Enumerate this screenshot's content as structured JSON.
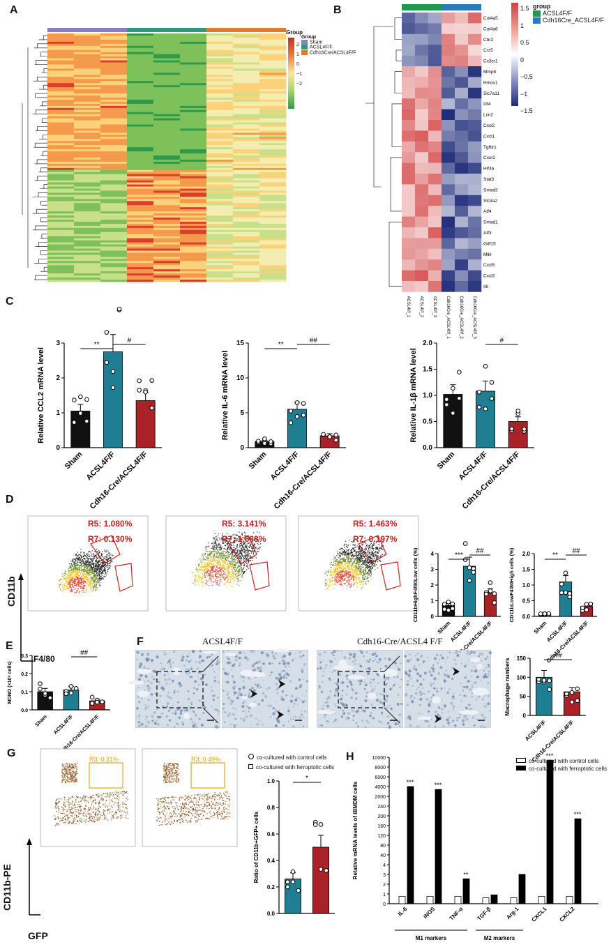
{
  "panels": {
    "A": "A",
    "B": "B",
    "C": "C",
    "D": "D",
    "E": "E",
    "F": "F",
    "G": "G",
    "H": "H"
  },
  "heatmapA": {
    "legend_title": "Group",
    "scale_ticks": [
      "2",
      "1",
      "0",
      "−1",
      "−2"
    ],
    "group_title": "Group",
    "groups": [
      {
        "name": "Sham",
        "color": "#8a7fc0"
      },
      {
        "name": "ACSL4F/F",
        "color": "#2a9a7a"
      },
      {
        "name": "Cdh16Cre/ACSL4F/F",
        "color": "#e07a2a"
      }
    ]
  },
  "heatmapB": {
    "scale_ticks": [
      "1.5",
      "1",
      "0.5",
      "0",
      "−0.5",
      "−1",
      "−1.5"
    ],
    "group_title": "group",
    "groups": [
      {
        "name": "ACSL4F/F",
        "color": "#1f9a4a"
      },
      {
        "name": "Cdh16Cre_ACSL4F/F",
        "color": "#2a7ac0"
      }
    ],
    "genes": [
      "Col4a5",
      "Col4a6",
      "Cbr2",
      "Ccr5",
      "Cx3cr1",
      "Mmp8",
      "Hmox1",
      "Slc7a11",
      "Il34",
      "Lcn2",
      "Cxcl2",
      "Cxcl1",
      "Tgfbr1",
      "Cxcr2",
      "Hif3a",
      "Stat3",
      "Smad3",
      "Slc3a2",
      "Atf4",
      "Smad1",
      "Atf3",
      "Gdf15",
      "Mlkl",
      "Cxcl5",
      "Cxcl3",
      "Il6"
    ],
    "samples": [
      "ACSL4f/f_1",
      "ACSL4f/f_2",
      "ACSL4f/f_3",
      "Cdh16Cre_ACSL4f/f_1",
      "Cdh16Cre_ACSL4f/f_2",
      "Cdh16Cre_ACSL4f/f_3"
    ]
  },
  "panelC": {
    "categories": [
      "Sham",
      "ACSL4F/F",
      "Cdh16-Cre/ACSL4F/F"
    ],
    "charts": [
      {
        "ylabel": "Relative CCL2 mRNA level",
        "ymax": 3,
        "ticks": [
          "0",
          "1",
          "2",
          "3"
        ],
        "means": [
          1.05,
          2.75,
          1.35
        ],
        "sig1": "**",
        "sig2": "#"
      },
      {
        "ylabel": "Relative IL-6 mRNA level",
        "ymax": 15,
        "ticks": [
          "0",
          "5",
          "10",
          "15"
        ],
        "means": [
          0.9,
          5.5,
          1.7
        ],
        "sig1": "**",
        "sig2": "##"
      },
      {
        "ylabel": "Relative IL-1β mRNA level",
        "ymax": 2,
        "ticks": [
          "0.0",
          "0.5",
          "1.0",
          "1.5",
          "2.0"
        ],
        "means": [
          1.02,
          1.08,
          0.5
        ],
        "sig1": "",
        "sig2": "#"
      }
    ]
  },
  "panelD": {
    "gates": [
      {
        "r5": "R5: 1.080%",
        "r7": "R7: 0.130%"
      },
      {
        "r5": "R5: 3.141%",
        "r7": "R7: 1.638%"
      },
      {
        "r5": "R5: 1.463%",
        "r7": "R7: 0.197%"
      }
    ],
    "yaxis": "CD11b",
    "xaxis": "F4/80",
    "bar1": {
      "ylabel": "CD11bHighF4/80Low cells (%)",
      "ticks": [
        "0",
        "1",
        "2",
        "3",
        "4"
      ],
      "means": [
        0.7,
        3.2,
        1.5
      ],
      "sig1": "***",
      "sig2": "##"
    },
    "bar2": {
      "ylabel": "CD11bLowF4/80High cells (%)",
      "ticks": [
        "0.0",
        "0.5",
        "1.0",
        "1.5",
        "2.0"
      ],
      "means": [
        0.08,
        1.1,
        0.32
      ],
      "sig1": "**",
      "sig2": "##"
    },
    "categories": [
      "Sham",
      "ACSL4F/F",
      "Cdh16-Cre/ACSL4F/F"
    ]
  },
  "panelE": {
    "ylabel": "MONO (×10⁹ cells)",
    "ticks": [
      "0.0",
      "0.1",
      "0.2",
      "0.3"
    ],
    "means": [
      0.1,
      0.11,
      0.05
    ],
    "sig": "##",
    "categories": [
      "Sham",
      "ACSL4F/F",
      "Cdh16-Cre/ACSL4F/F"
    ]
  },
  "panelF": {
    "title1": "ACSL4F/F",
    "title2": "Cdh16-Cre/ACSL4 F/F",
    "bar": {
      "ylabel": "Macrophage numbers",
      "ticks": [
        "0",
        "50",
        "100",
        "150"
      ],
      "means": [
        100,
        62
      ],
      "sig": "##",
      "categories": [
        "ACSL4F/F",
        "Cdh16-Cre/ACSL4F/F"
      ]
    }
  },
  "panelG": {
    "gates": [
      "R3: 0.31%",
      "R3: 0.49%"
    ],
    "yaxis": "CD11b-PE",
    "xaxis": "GFP",
    "legend": [
      "co-cultured with control cells",
      "co-cultured with ferroptotic cells"
    ],
    "bar": {
      "ylabel": "Ratio of CD11b+GFP+ cells",
      "ticks": [
        "0.0",
        "0.2",
        "0.4",
        "0.6",
        "0.8",
        "1.0"
      ],
      "means": [
        0.26,
        0.5
      ],
      "sig": "*"
    }
  },
  "panelH": {
    "ylabel": "Relative mRNA levels of iBMDM cells",
    "ticks": [
      "0",
      "1",
      "2",
      "3",
      "4",
      "40",
      "80",
      "120",
      "160",
      "200",
      "240",
      "2000",
      "4000",
      "6000",
      "8000",
      "10000"
    ],
    "legend": [
      "co-cultured with control cells",
      "co-cultured with ferroptotic cells"
    ],
    "genes": [
      "IL-6",
      "iNOS",
      "TNF-α",
      "TGF-β",
      "Arg-1",
      "CXCL1",
      "CXCL2"
    ],
    "sig": [
      "***",
      "***",
      "**",
      "",
      "",
      "***",
      "***"
    ],
    "groups": [
      "M1 markers",
      "M2 markers"
    ]
  },
  "chart_data": [
    {
      "type": "bar",
      "title": "",
      "ylabel": "Relative CCL2 mRNA level",
      "categories": [
        "Sham",
        "ACSL4F/F",
        "Cdh16-Cre/ACSL4F/F"
      ],
      "values": [
        1.05,
        2.75,
        1.35
      ],
      "ylim": [
        0,
        3
      ]
    },
    {
      "type": "bar",
      "title": "",
      "ylabel": "Relative IL-6 mRNA level",
      "categories": [
        "Sham",
        "ACSL4F/F",
        "Cdh16-Cre/ACSL4F/F"
      ],
      "values": [
        0.9,
        5.5,
        1.7
      ],
      "ylim": [
        0,
        15
      ]
    },
    {
      "type": "bar",
      "title": "",
      "ylabel": "Relative IL-1β mRNA level",
      "categories": [
        "Sham",
        "ACSL4F/F",
        "Cdh16-Cre/ACSL4F/F"
      ],
      "values": [
        1.02,
        1.08,
        0.5
      ],
      "ylim": [
        0,
        2
      ]
    },
    {
      "type": "bar",
      "ylabel": "CD11bHighF4/80Low cells (%)",
      "categories": [
        "Sham",
        "ACSL4F/F",
        "Cdh16-Cre/ACSL4F/F"
      ],
      "values": [
        0.7,
        3.2,
        1.5
      ],
      "ylim": [
        0,
        4
      ]
    },
    {
      "type": "bar",
      "ylabel": "CD11bLowF4/80High cells (%)",
      "categories": [
        "Sham",
        "ACSL4F/F",
        "Cdh16-Cre/ACSL4F/F"
      ],
      "values": [
        0.08,
        1.1,
        0.32
      ],
      "ylim": [
        0,
        2
      ]
    },
    {
      "type": "bar",
      "ylabel": "MONO (×10⁹ cells)",
      "categories": [
        "Sham",
        "ACSL4F/F",
        "Cdh16-Cre/ACSL4F/F"
      ],
      "values": [
        0.1,
        0.11,
        0.05
      ],
      "ylim": [
        0,
        0.3
      ]
    },
    {
      "type": "bar",
      "ylabel": "Macrophage numbers",
      "categories": [
        "ACSL4F/F",
        "Cdh16-Cre/ACSL4F/F"
      ],
      "values": [
        100,
        62
      ],
      "ylim": [
        0,
        150
      ]
    },
    {
      "type": "bar",
      "ylabel": "Ratio of CD11b+GFP+ cells",
      "categories": [
        "co-cultured with control cells",
        "co-cultured with ferroptotic cells"
      ],
      "values": [
        0.26,
        0.5
      ],
      "ylim": [
        0,
        1
      ]
    }
  ]
}
